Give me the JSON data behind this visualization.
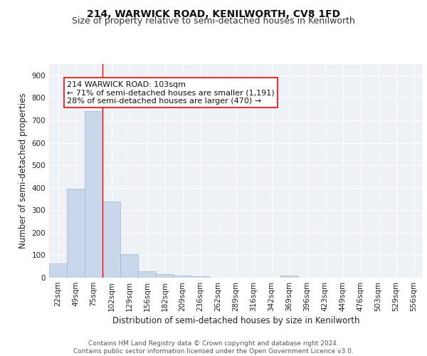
{
  "title1": "214, WARWICK ROAD, KENILWORTH, CV8 1FD",
  "title2": "Size of property relative to semi-detached houses in Kenilworth",
  "xlabel": "Distribution of semi-detached houses by size in Kenilworth",
  "ylabel": "Number of semi-detached properties",
  "categories": [
    "22sqm",
    "49sqm",
    "75sqm",
    "102sqm",
    "129sqm",
    "156sqm",
    "182sqm",
    "209sqm",
    "236sqm",
    "262sqm",
    "289sqm",
    "316sqm",
    "342sqm",
    "369sqm",
    "396sqm",
    "423sqm",
    "449sqm",
    "476sqm",
    "503sqm",
    "529sqm",
    "556sqm"
  ],
  "values": [
    62,
    397,
    742,
    338,
    104,
    29,
    17,
    10,
    5,
    0,
    0,
    0,
    0,
    8,
    0,
    0,
    0,
    0,
    0,
    0,
    0
  ],
  "bar_color": "#c8d8ea",
  "bar_edge_color": "#a0b8cc",
  "vline_x_index": 3,
  "annotation_text_line1": "214 WARWICK ROAD: 103sqm",
  "annotation_text_line2": "← 71% of semi-detached houses are smaller (1,191)",
  "annotation_text_line3": "28% of semi-detached houses are larger (470) →",
  "ylim": [
    0,
    950
  ],
  "yticks": [
    0,
    100,
    200,
    300,
    400,
    500,
    600,
    700,
    800,
    900
  ],
  "footnote": "Contains HM Land Registry data © Crown copyright and database right 2024.\nContains public sector information licensed under the Open Government Licence v3.0.",
  "bg_color": "#eef2f7",
  "grid_color": "#ffffff",
  "title1_fontsize": 10,
  "title2_fontsize": 9,
  "axis_label_fontsize": 8.5,
  "tick_fontsize": 7.5,
  "annotation_fontsize": 8,
  "footnote_fontsize": 6.5
}
